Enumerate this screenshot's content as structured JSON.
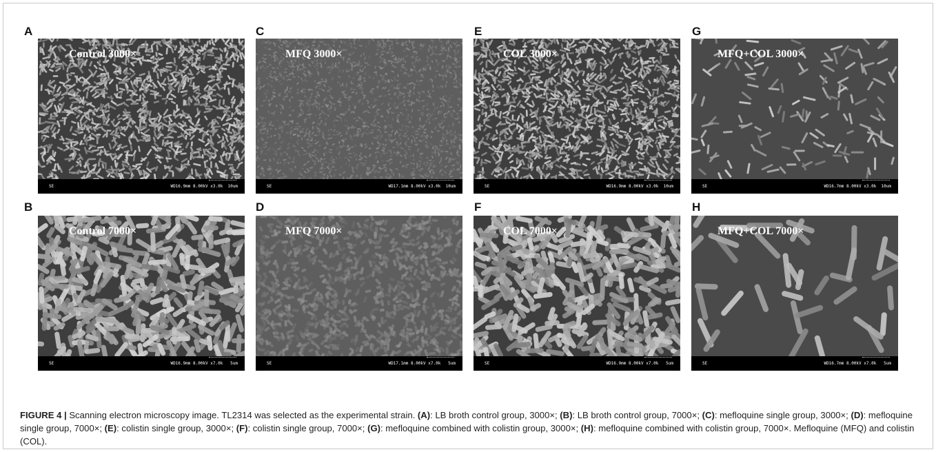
{
  "panels": [
    {
      "letter": "A",
      "overlay": "Control 3000×",
      "se": "SE",
      "info": "WD16.9mm 8.00kV x3.0k  10um",
      "tone": "dense"
    },
    {
      "letter": "B",
      "overlay": "Control 7000×",
      "se": "SE",
      "info": "WD16.9mm 8.00kV x7.0k   5um",
      "tone": "dense"
    },
    {
      "letter": "C",
      "overlay": "MFQ 3000×",
      "se": "SE",
      "info": "WD17.1mm 8.00kV x3.0k  10um",
      "tone": "smooth"
    },
    {
      "letter": "D",
      "overlay": "MFQ 7000×",
      "se": "SE",
      "info": "WD17.1mm 8.00kV x7.0k   5um",
      "tone": "smooth"
    },
    {
      "letter": "E",
      "overlay": "COL 3000×",
      "se": "SE",
      "info": "WD16.9mm 8.00kV x3.0k  10um",
      "tone": "dense"
    },
    {
      "letter": "F",
      "overlay": "COL 7000×",
      "se": "SE",
      "info": "WD16.9mm 8.00kV x7.0k   5um",
      "tone": "dense"
    },
    {
      "letter": "G",
      "overlay": "MFQ+COL 3000×",
      "se": "SE",
      "info": "WD16.7mm 8.00kV x3.0k  10um",
      "tone": "sparse"
    },
    {
      "letter": "H",
      "overlay": "MFQ+COL 7000×",
      "se": "SE",
      "info": "WD16.7mm 8.00kV x7.0k   5um",
      "tone": "sparse"
    }
  ],
  "caption": {
    "figure_label": "FIGURE 4 |",
    "segments": [
      {
        "bold": false,
        "text": " Scanning electron microscopy image. TL2314 was selected as the experimental strain. "
      },
      {
        "bold": true,
        "text": "(A)"
      },
      {
        "bold": false,
        "text": ": LB broth control group, 3000×; "
      },
      {
        "bold": true,
        "text": "(B)"
      },
      {
        "bold": false,
        "text": ": LB broth control group, 7000×; "
      },
      {
        "bold": true,
        "text": "(C)"
      },
      {
        "bold": false,
        "text": ": mefloquine single group, 3000×; "
      },
      {
        "bold": true,
        "text": "(D)"
      },
      {
        "bold": false,
        "text": ": mefloquine single group, 7000×; "
      },
      {
        "bold": true,
        "text": "(E)"
      },
      {
        "bold": false,
        "text": ": colistin single group, 3000×; "
      },
      {
        "bold": true,
        "text": "(F)"
      },
      {
        "bold": false,
        "text": ": colistin single group, 7000×; "
      },
      {
        "bold": true,
        "text": "(G)"
      },
      {
        "bold": false,
        "text": ": mefloquine combined with colistin group, 3000×; "
      },
      {
        "bold": true,
        "text": "(H)"
      },
      {
        "bold": false,
        "text": ": mefloquine combined with colistin group, 7000×. Mefloquine (MFQ) and colistin (COL)."
      }
    ]
  }
}
